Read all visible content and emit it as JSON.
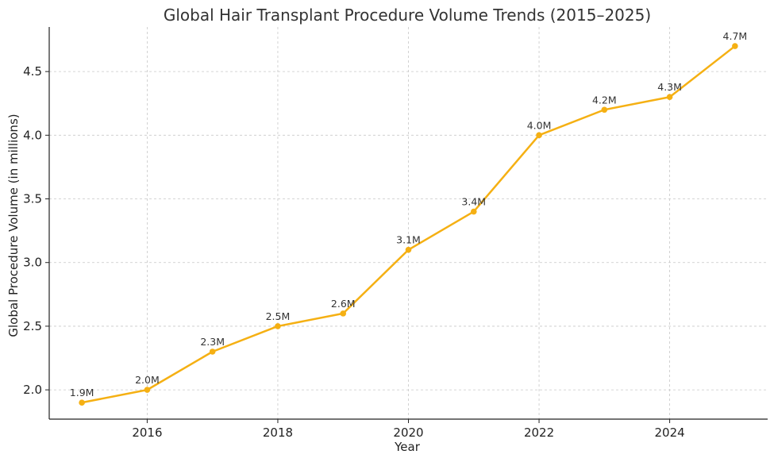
{
  "chart_data": {
    "type": "line",
    "title": "Global Hair Transplant Procedure Volume Trends (2015–2025)",
    "xlabel": "Year",
    "ylabel": "Global Procedure Volume (in millions)",
    "xlim": [
      2014.5,
      2025.5
    ],
    "ylim": [
      1.77,
      4.85
    ],
    "xticks": [
      2016,
      2018,
      2020,
      2022,
      2024
    ],
    "yticks": [
      2.0,
      2.5,
      3.0,
      3.5,
      4.0,
      4.5
    ],
    "grid": true,
    "series": [
      {
        "color": "#f5b013",
        "x": [
          2015,
          2016,
          2017,
          2018,
          2019,
          2020,
          2021,
          2022,
          2023,
          2024,
          2025
        ],
        "y": [
          1.9,
          2.0,
          2.3,
          2.5,
          2.6,
          3.1,
          3.4,
          4.0,
          4.2,
          4.3,
          4.7
        ],
        "labels": [
          "1.9M",
          "2.0M",
          "2.3M",
          "2.5M",
          "2.6M",
          "3.1M",
          "3.4M",
          "4.0M",
          "4.2M",
          "4.3M",
          "4.7M"
        ]
      }
    ]
  }
}
